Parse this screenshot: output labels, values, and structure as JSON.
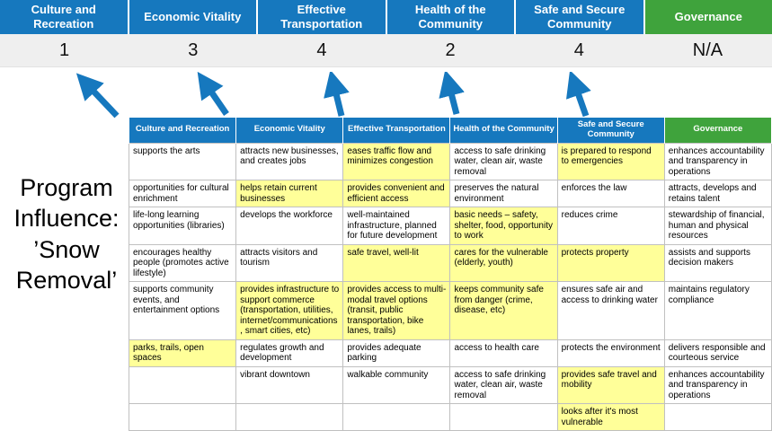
{
  "colors": {
    "header_blue": "#1678be",
    "header_green": "#3fa33c",
    "highlight_yellow": "#ffff99",
    "score_band_gray": "#efefef",
    "arrow_blue": "#1678be"
  },
  "scoreboard": {
    "columns": [
      {
        "label": "Culture and Recreation",
        "score": "1"
      },
      {
        "label": "Economic Vitality",
        "score": "3"
      },
      {
        "label": "Effective Transportation",
        "score": "4"
      },
      {
        "label": "Health of the Community",
        "score": "2"
      },
      {
        "label": "Safe and Secure Community",
        "score": "4"
      },
      {
        "label": "Governance",
        "score": "N/A"
      }
    ]
  },
  "program": {
    "label": "Program Influence: ’Snow Removal’"
  },
  "matrix": {
    "headers": [
      "Culture and Recreation",
      "Economic Vitality",
      "Effective Transportation",
      "Health of the Community",
      "Safe and Secure Community",
      "Governance"
    ],
    "rows": [
      [
        {
          "text": "supports the arts",
          "highlight": false
        },
        {
          "text": "attracts new businesses, and creates jobs",
          "highlight": false
        },
        {
          "text": "eases traffic flow and minimizes congestion",
          "highlight": true
        },
        {
          "text": "access to safe drinking water, clean air, waste removal",
          "highlight": false
        },
        {
          "text": "is prepared to respond to emergencies",
          "highlight": true
        },
        {
          "text": "enhances accountability and transparency in operations",
          "highlight": false
        }
      ],
      [
        {
          "text": "opportunities for cultural enrichment",
          "highlight": false
        },
        {
          "text": "helps retain current businesses",
          "highlight": true
        },
        {
          "text": "provides convenient and efficient access",
          "highlight": true
        },
        {
          "text": "preserves the natural environment",
          "highlight": false
        },
        {
          "text": "enforces the law",
          "highlight": false
        },
        {
          "text": "attracts, develops and retains talent",
          "highlight": false
        }
      ],
      [
        {
          "text": "life-long learning opportunities (libraries)",
          "highlight": false
        },
        {
          "text": "develops the workforce",
          "highlight": false
        },
        {
          "text": "well-maintained infrastructure, planned for future development",
          "highlight": false
        },
        {
          "text": "basic needs – safety, shelter, food, opportunity to work",
          "highlight": true
        },
        {
          "text": "reduces crime",
          "highlight": false
        },
        {
          "text": "stewardship of financial, human and physical resources",
          "highlight": false
        }
      ],
      [
        {
          "text": "encourages healthy people (promotes active lifestyle)",
          "highlight": false
        },
        {
          "text": "attracts visitors and tourism",
          "highlight": false
        },
        {
          "text": "safe travel, well-lit",
          "highlight": true
        },
        {
          "text": "cares for the vulnerable (elderly, youth)",
          "highlight": true
        },
        {
          "text": "protects property",
          "highlight": true
        },
        {
          "text": "assists and supports decision makers",
          "highlight": false
        }
      ],
      [
        {
          "text": "supports community events, and entertainment options",
          "highlight": false
        },
        {
          "text": "provides infrastructure to support commerce (transportation, utilities, internet/communications, smart cities, etc)",
          "highlight": true
        },
        {
          "text": "provides access to multi-modal travel options (transit, public transportation, bike lanes, trails)",
          "highlight": true
        },
        {
          "text": "keeps community safe from danger (crime, disease, etc)",
          "highlight": true
        },
        {
          "text": "ensures safe air and access to drinking water",
          "highlight": false
        },
        {
          "text": "maintains regulatory compliance",
          "highlight": false
        }
      ],
      [
        {
          "text": "parks, trails, open spaces",
          "highlight": true
        },
        {
          "text": "regulates growth and development",
          "highlight": false
        },
        {
          "text": "provides adequate parking",
          "highlight": false
        },
        {
          "text": "access to health care",
          "highlight": false
        },
        {
          "text": "protects the environment",
          "highlight": false
        },
        {
          "text": "delivers responsible and courteous service",
          "highlight": false
        }
      ],
      [
        {
          "text": "",
          "highlight": false
        },
        {
          "text": "vibrant downtown",
          "highlight": false
        },
        {
          "text": "walkable community",
          "highlight": false
        },
        {
          "text": "access to safe drinking water, clean air, waste removal",
          "highlight": false
        },
        {
          "text": "provides safe travel and mobility",
          "highlight": true
        },
        {
          "text": "enhances accountability and transparency in operations",
          "highlight": false
        }
      ],
      [
        {
          "text": "",
          "highlight": false
        },
        {
          "text": "",
          "highlight": false
        },
        {
          "text": "",
          "highlight": false
        },
        {
          "text": "",
          "highlight": false
        },
        {
          "text": "looks after it's most vulnerable",
          "highlight": true
        },
        {
          "text": "",
          "highlight": false
        }
      ]
    ]
  }
}
